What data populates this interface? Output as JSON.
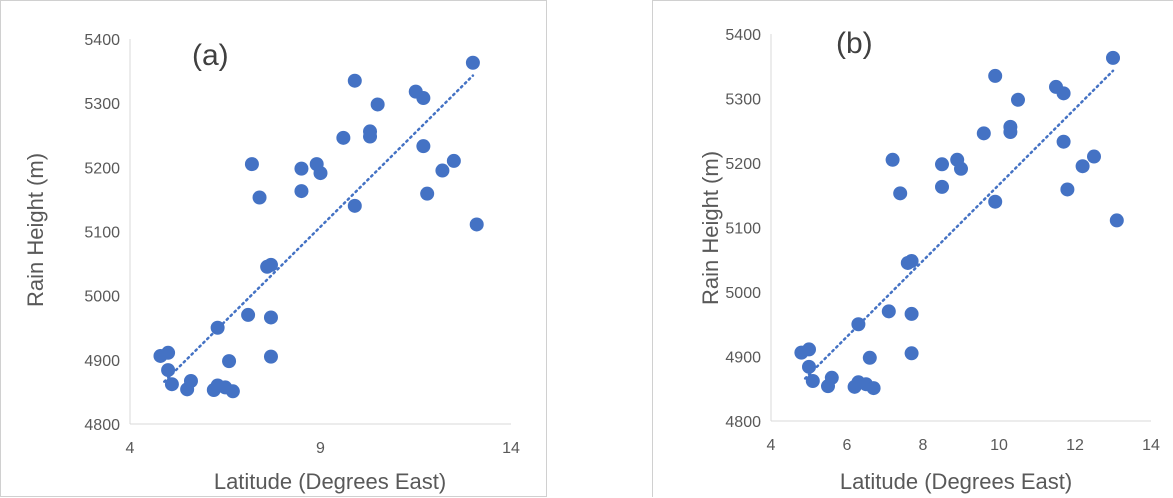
{
  "chart_data": [
    {
      "type": "scatter",
      "label": "(a)",
      "xlabel": "Latitude (Degrees East)",
      "ylabel": "Rain Height (m)",
      "xlim": [
        4,
        14
      ],
      "ylim": [
        4800,
        5400
      ],
      "xticks": [
        4,
        9,
        14
      ],
      "yticks": [
        4800,
        4900,
        5000,
        5100,
        5200,
        5300,
        5400
      ],
      "point_color": "#4472c4",
      "trendline": {
        "type": "linear",
        "style": "dotted",
        "color": "#4472c4",
        "from": [
          4.9,
          4866
        ],
        "to": [
          13.0,
          5343
        ]
      },
      "points": [
        {
          "x": 4.8,
          "y": 4906
        },
        {
          "x": 5.0,
          "y": 4911
        },
        {
          "x": 5.0,
          "y": 4884
        },
        {
          "x": 5.1,
          "y": 4862
        },
        {
          "x": 5.5,
          "y": 4854
        },
        {
          "x": 5.6,
          "y": 4867
        },
        {
          "x": 6.2,
          "y": 4853
        },
        {
          "x": 6.3,
          "y": 4860
        },
        {
          "x": 6.5,
          "y": 4857
        },
        {
          "x": 6.7,
          "y": 4851
        },
        {
          "x": 6.3,
          "y": 4950
        },
        {
          "x": 6.6,
          "y": 4898
        },
        {
          "x": 7.1,
          "y": 4970
        },
        {
          "x": 7.2,
          "y": 5205
        },
        {
          "x": 7.4,
          "y": 5153
        },
        {
          "x": 7.6,
          "y": 5045
        },
        {
          "x": 7.7,
          "y": 5048
        },
        {
          "x": 7.7,
          "y": 4966
        },
        {
          "x": 7.7,
          "y": 4905
        },
        {
          "x": 8.5,
          "y": 5198
        },
        {
          "x": 8.5,
          "y": 5163
        },
        {
          "x": 8.9,
          "y": 5205
        },
        {
          "x": 9.0,
          "y": 5191
        },
        {
          "x": 9.6,
          "y": 5246
        },
        {
          "x": 9.9,
          "y": 5335
        },
        {
          "x": 9.9,
          "y": 5140
        },
        {
          "x": 10.3,
          "y": 5256
        },
        {
          "x": 10.3,
          "y": 5248
        },
        {
          "x": 10.5,
          "y": 5298
        },
        {
          "x": 11.5,
          "y": 5318
        },
        {
          "x": 11.7,
          "y": 5308
        },
        {
          "x": 11.7,
          "y": 5233
        },
        {
          "x": 11.8,
          "y": 5159
        },
        {
          "x": 12.2,
          "y": 5195
        },
        {
          "x": 12.5,
          "y": 5210
        },
        {
          "x": 13.0,
          "y": 5363
        },
        {
          "x": 13.1,
          "y": 5111
        }
      ]
    },
    {
      "type": "scatter",
      "label": "(b)",
      "xlabel": "Latitude (Degrees East)",
      "ylabel": "Rain Height (m)",
      "xlim": [
        4,
        14
      ],
      "ylim": [
        4800,
        5400
      ],
      "xticks": [
        4,
        6,
        8,
        10,
        12,
        14
      ],
      "yticks": [
        4800,
        4900,
        5000,
        5100,
        5200,
        5300,
        5400
      ],
      "point_color": "#4472c4",
      "trendline": {
        "type": "linear",
        "style": "dotted",
        "color": "#4472c4",
        "from": [
          4.9,
          4866
        ],
        "to": [
          13.0,
          5343
        ]
      },
      "points": [
        {
          "x": 4.8,
          "y": 4906
        },
        {
          "x": 5.0,
          "y": 4911
        },
        {
          "x": 5.0,
          "y": 4884
        },
        {
          "x": 5.1,
          "y": 4862
        },
        {
          "x": 5.5,
          "y": 4854
        },
        {
          "x": 5.6,
          "y": 4867
        },
        {
          "x": 6.2,
          "y": 4853
        },
        {
          "x": 6.3,
          "y": 4860
        },
        {
          "x": 6.5,
          "y": 4857
        },
        {
          "x": 6.7,
          "y": 4851
        },
        {
          "x": 6.3,
          "y": 4950
        },
        {
          "x": 6.6,
          "y": 4898
        },
        {
          "x": 7.1,
          "y": 4970
        },
        {
          "x": 7.2,
          "y": 5205
        },
        {
          "x": 7.4,
          "y": 5153
        },
        {
          "x": 7.6,
          "y": 5045
        },
        {
          "x": 7.7,
          "y": 5048
        },
        {
          "x": 7.7,
          "y": 4966
        },
        {
          "x": 7.7,
          "y": 4905
        },
        {
          "x": 8.5,
          "y": 5198
        },
        {
          "x": 8.5,
          "y": 5163
        },
        {
          "x": 8.9,
          "y": 5205
        },
        {
          "x": 9.0,
          "y": 5191
        },
        {
          "x": 9.6,
          "y": 5246
        },
        {
          "x": 9.9,
          "y": 5335
        },
        {
          "x": 9.9,
          "y": 5140
        },
        {
          "x": 10.3,
          "y": 5256
        },
        {
          "x": 10.3,
          "y": 5248
        },
        {
          "x": 10.5,
          "y": 5298
        },
        {
          "x": 11.5,
          "y": 5318
        },
        {
          "x": 11.7,
          "y": 5308
        },
        {
          "x": 11.7,
          "y": 5233
        },
        {
          "x": 11.8,
          "y": 5159
        },
        {
          "x": 12.2,
          "y": 5195
        },
        {
          "x": 12.5,
          "y": 5210
        },
        {
          "x": 13.0,
          "y": 5363
        },
        {
          "x": 13.1,
          "y": 5111
        }
      ]
    }
  ]
}
